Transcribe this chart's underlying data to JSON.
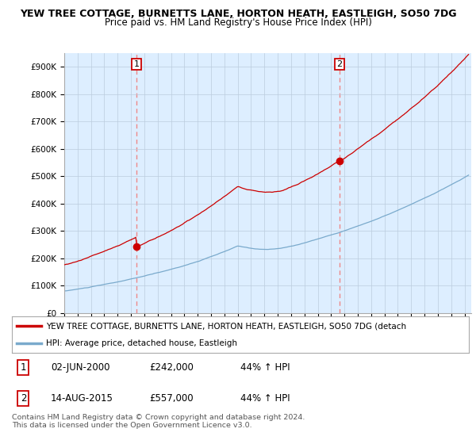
{
  "title": "YEW TREE COTTAGE, BURNETTS LANE, HORTON HEATH, EASTLEIGH, SO50 7DG",
  "subtitle": "Price paid vs. HM Land Registry's House Price Index (HPI)",
  "ylim": [
    0,
    950000
  ],
  "yticks": [
    0,
    100000,
    200000,
    300000,
    400000,
    500000,
    600000,
    700000,
    800000,
    900000
  ],
  "ytick_labels": [
    "£0",
    "£100K",
    "£200K",
    "£300K",
    "£400K",
    "£500K",
    "£600K",
    "£700K",
    "£800K",
    "£900K"
  ],
  "xlim_start": 1995.0,
  "xlim_end": 2025.5,
  "purchase1_date": 2000.42,
  "purchase1_price": 242000,
  "purchase2_date": 2015.62,
  "purchase2_price": 557000,
  "line_color_red": "#cc0000",
  "line_color_blue": "#7aaacc",
  "vline_color": "#ee8888",
  "plot_bg_color": "#ddeeff",
  "background_color": "#ffffff",
  "grid_color": "#bbccdd",
  "legend_label_red": "YEW TREE COTTAGE, BURNETTS LANE, HORTON HEATH, EASTLEIGH, SO50 7DG (detach",
  "legend_label_blue": "HPI: Average price, detached house, Eastleigh",
  "table_rows": [
    {
      "num": "1",
      "date": "02-JUN-2000",
      "price": "£242,000",
      "change": "44% ↑ HPI"
    },
    {
      "num": "2",
      "date": "14-AUG-2015",
      "price": "£557,000",
      "change": "44% ↑ HPI"
    }
  ],
  "footnote": "Contains HM Land Registry data © Crown copyright and database right 2024.\nThis data is licensed under the Open Government Licence v3.0.",
  "title_fontsize": 9,
  "subtitle_fontsize": 8.5,
  "tick_fontsize": 7.5
}
